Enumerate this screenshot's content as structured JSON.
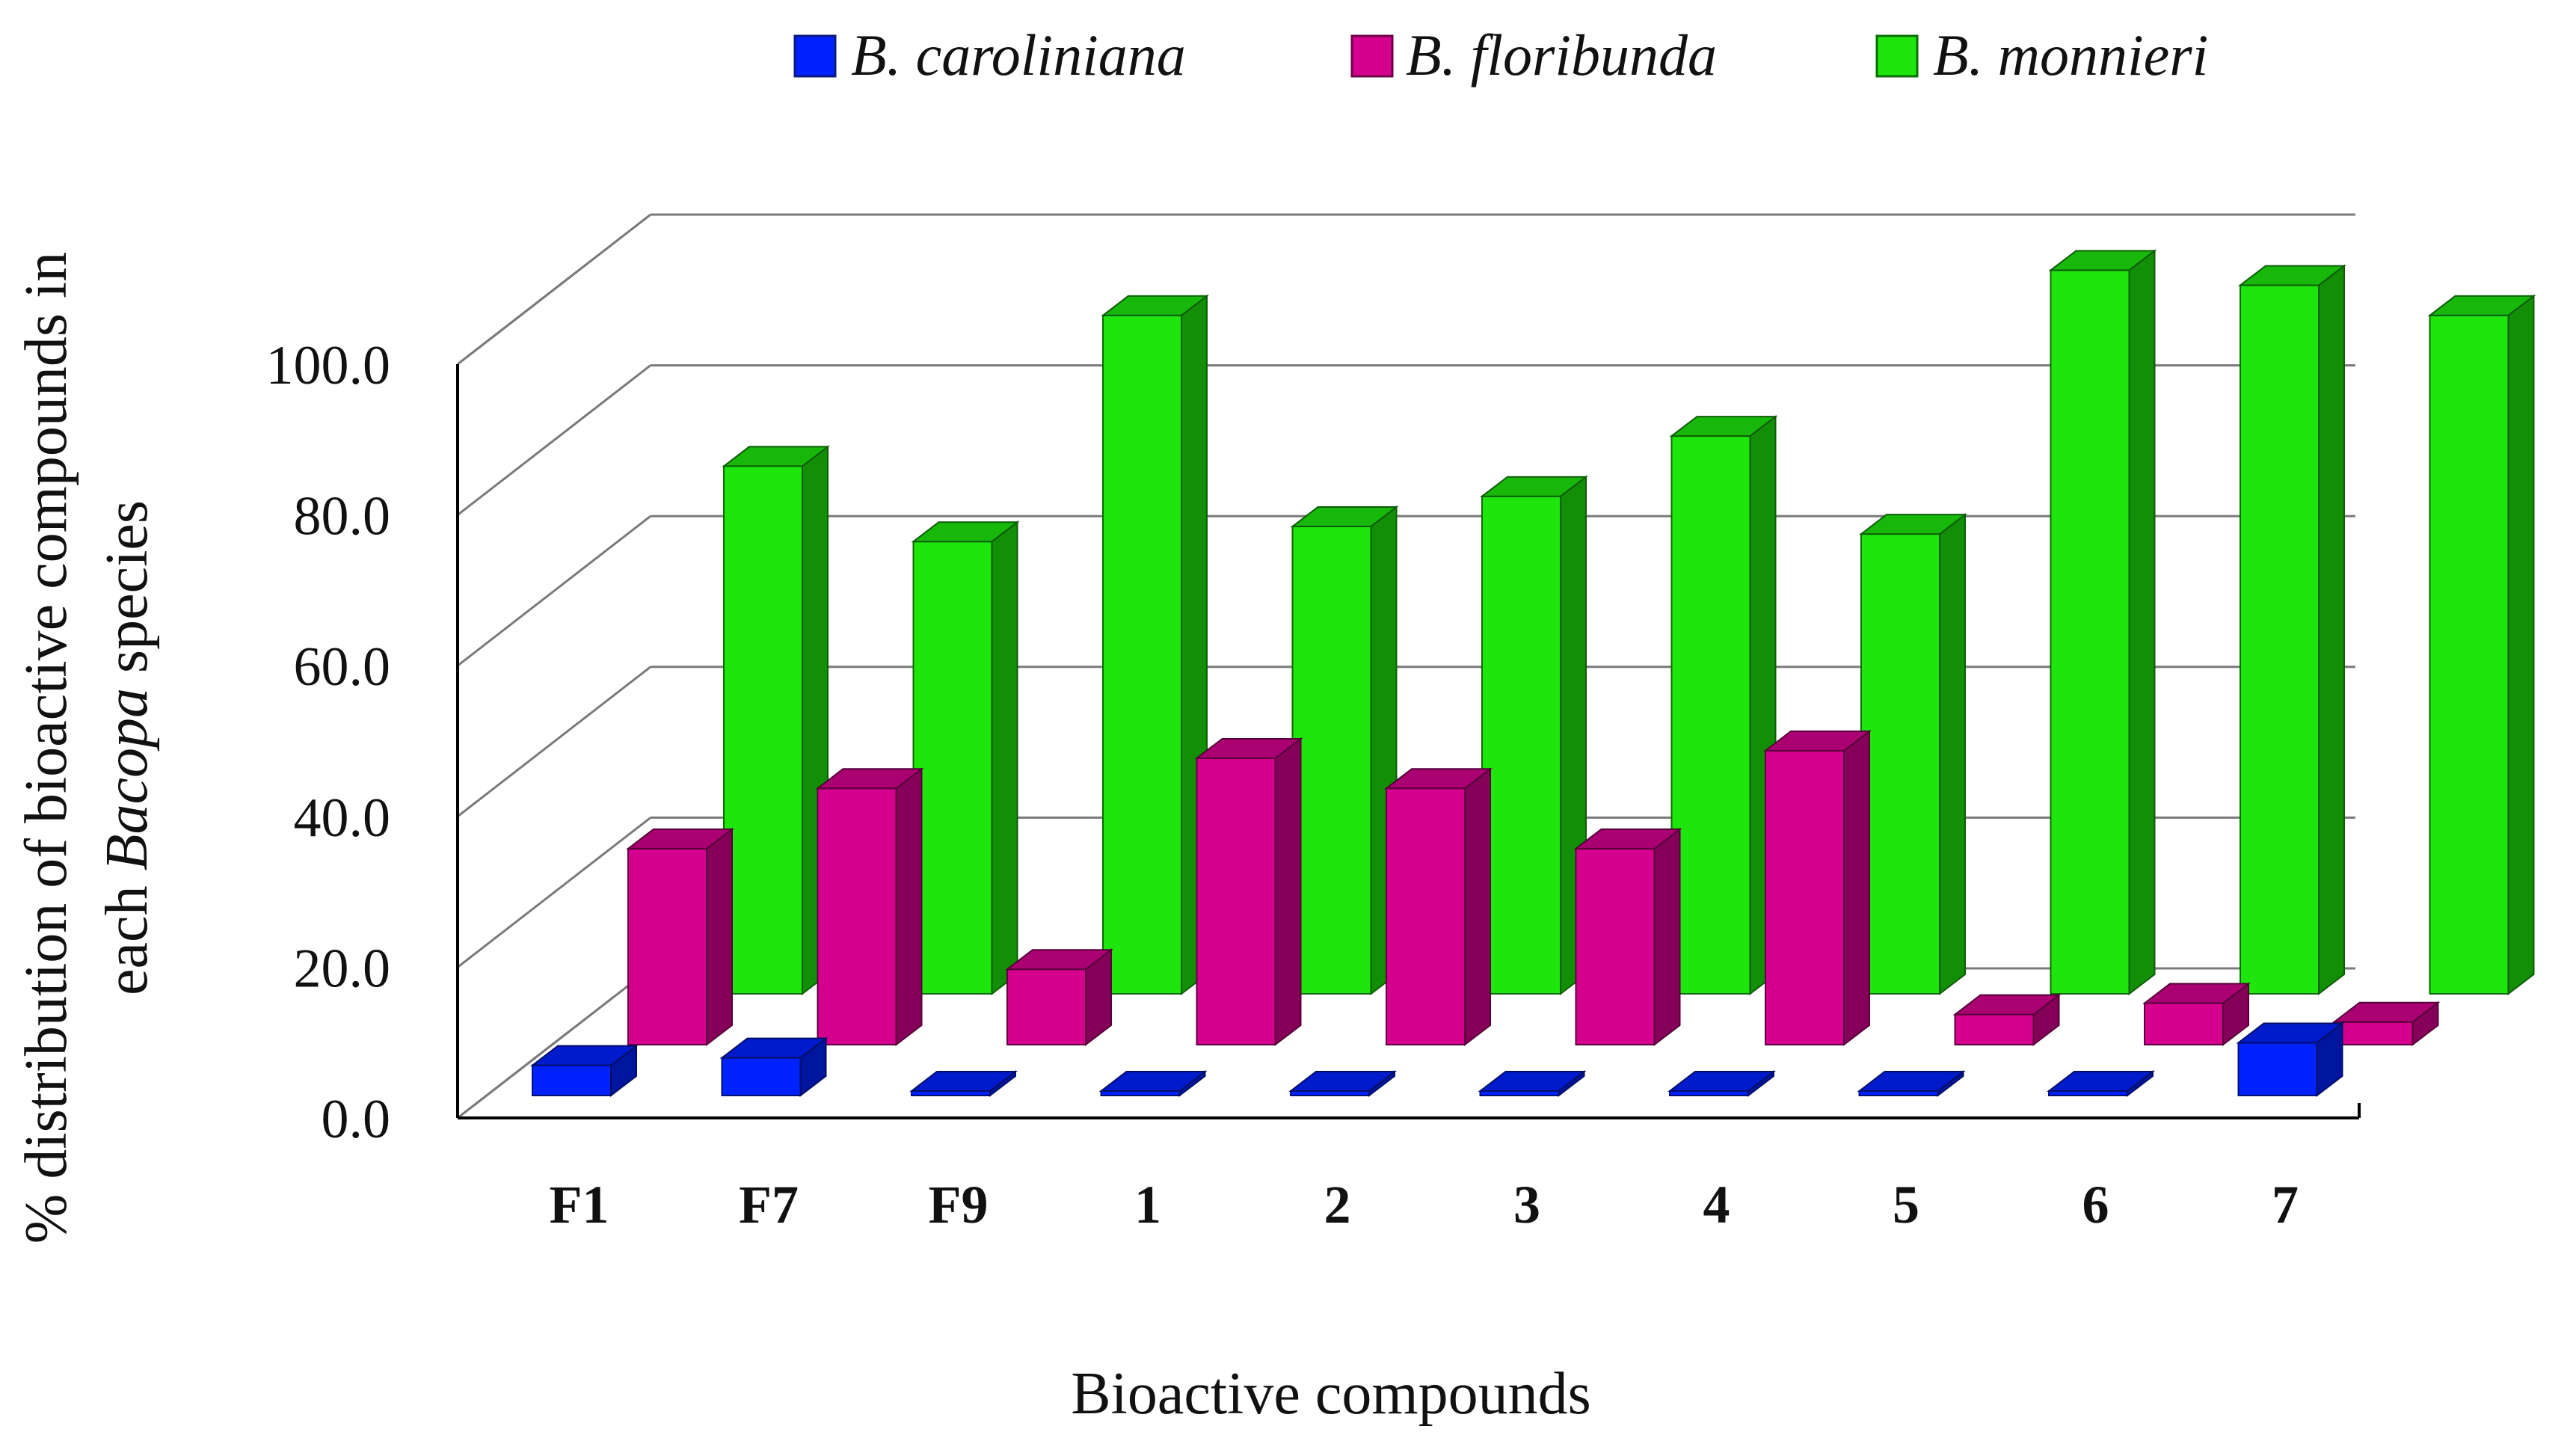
{
  "chart_data": {
    "type": "bar",
    "style": "3d-clustered-depth",
    "title": "",
    "xlabel": "Bioactive compounds",
    "ylabel_line1": "% distribution of bioactive compounds in",
    "ylabel_line2_prefix": "each",
    "ylabel_line2_italic": "Bacopa",
    "ylabel_line2_suffix": "species",
    "ylim": [
      0,
      100
    ],
    "yticks": [
      "0.0",
      "20.0",
      "40.0",
      "60.0",
      "80.0",
      "100.0"
    ],
    "ytick_values": [
      0,
      20,
      40,
      60,
      80,
      100
    ],
    "categories": [
      "F1",
      "F7",
      "F9",
      "1",
      "2",
      "3",
      "4",
      "5",
      "6",
      "7"
    ],
    "legend_position": "top-center",
    "series": [
      {
        "name": "B. caroliniana",
        "color": "#0022ff",
        "values": [
          4.0,
          5.0,
          0,
          0,
          0,
          0,
          0,
          0.5,
          0.5,
          7.0
        ]
      },
      {
        "name": "B. floribunda",
        "color": "#d6008e",
        "values": [
          26.0,
          34.0,
          10.0,
          38.0,
          34.0,
          26.0,
          39.0,
          4.0,
          5.5,
          3.0
        ]
      },
      {
        "name": "B. monnieri",
        "color": "#1ee60c",
        "values": [
          70.0,
          60.0,
          90.0,
          62.0,
          66.0,
          74.0,
          61.0,
          96.0,
          94.0,
          90.0
        ]
      }
    ]
  }
}
